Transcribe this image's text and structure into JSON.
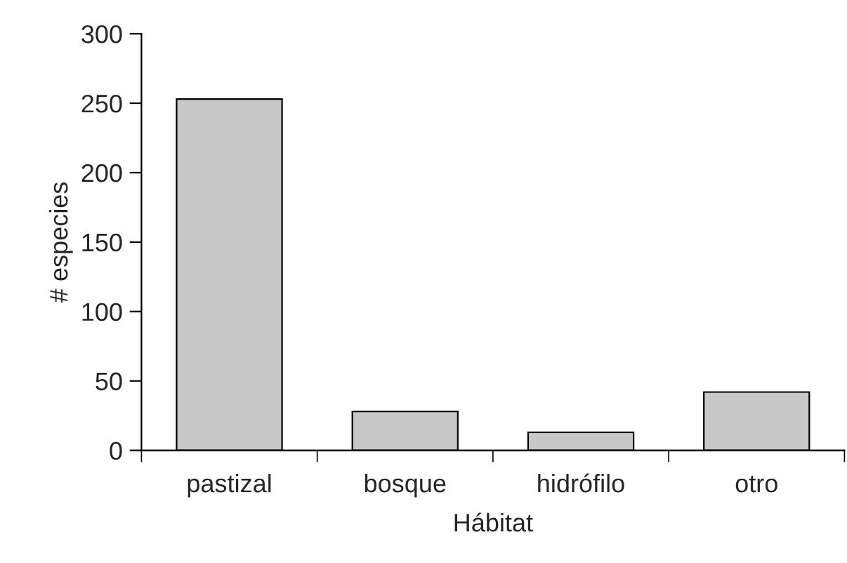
{
  "chart_data": {
    "type": "bar",
    "xlabel": "Hábitat",
    "ylabel": "# especies",
    "categories": [
      "pastizal",
      "bosque",
      "hidrófilo",
      "otro"
    ],
    "values": [
      253,
      28,
      13,
      42
    ],
    "color": "#c8c8c8",
    "ylim": [
      0,
      300
    ],
    "yticks": [
      0,
      50,
      100,
      150,
      200,
      250,
      300
    ],
    "grid": false,
    "legend": false
  }
}
